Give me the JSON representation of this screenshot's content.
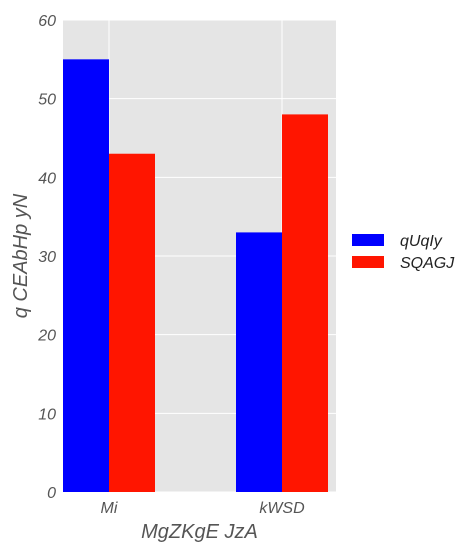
{
  "chart_data": {
    "type": "bar",
    "categories": [
      "Mi",
      "kWSD"
    ],
    "series": [
      {
        "name": "qUqIy",
        "values": [
          55,
          33
        ],
        "color": "#0000ff"
      },
      {
        "name": "SQAGJ",
        "values": [
          43,
          48
        ],
        "color": "#ff1500"
      }
    ],
    "xlabel": "MgZKgE JzA",
    "ylabel": "q CEAbHp yN",
    "ylim": [
      0,
      60
    ],
    "yticks": [
      0,
      10,
      20,
      30,
      40,
      50,
      60
    ],
    "grid": true,
    "legend_position": "right",
    "plot_background": "#e5e5e5"
  }
}
